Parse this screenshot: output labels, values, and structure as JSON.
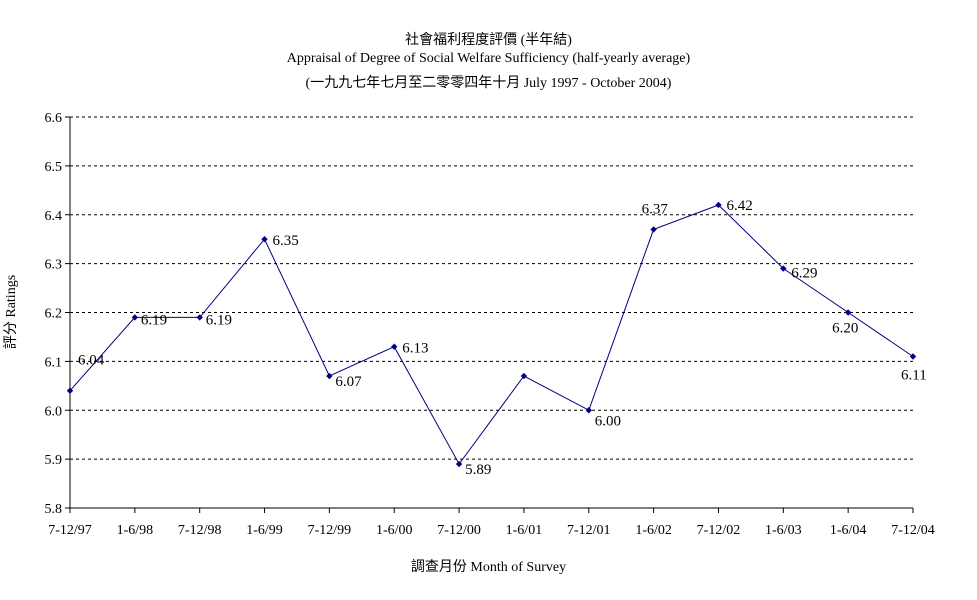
{
  "chart_data": {
    "type": "line",
    "title": "社會福利程度評價 (半年結)",
    "subtitle": "Appraisal of Degree of Social Welfare Sufficiency (half-yearly average)",
    "subtitle2": "(一九九七年七月至二零零四年十月 July 1997 -  October 2004)",
    "xlabel": "調查月份 Month of Survey",
    "ylabel": "評分 Ratings",
    "categories": [
      "7-12/97",
      "1-6/98",
      "7-12/98",
      "1-6/99",
      "7-12/99",
      "1-6/00",
      "7-12/00",
      "1-6/01",
      "7-12/01",
      "1-6/02",
      "7-12/02",
      "1-6/03",
      "1-6/04",
      "7-12/04"
    ],
    "series": [
      {
        "values": [
          6.04,
          6.19,
          6.19,
          6.35,
          6.07,
          6.13,
          5.89,
          6.07,
          6.0,
          6.37,
          6.42,
          6.29,
          6.2,
          6.11
        ],
        "labels": [
          "6.04",
          "6.19",
          "6.19",
          "6.35",
          "6.07",
          "6.13",
          "5.89",
          "",
          "6.00",
          "6.37",
          "6.42",
          "6.29",
          "6.20",
          "6.11"
        ]
      }
    ],
    "ylim": [
      5.8,
      6.6
    ],
    "yticks": [
      "5.8",
      "5.9",
      "6.0",
      "6.1",
      "6.2",
      "6.3",
      "6.4",
      "6.5",
      "6.6"
    ],
    "grid": true,
    "grid_style": "dashed",
    "legend": "none",
    "line_color": "#000080",
    "marker": "diamond"
  }
}
